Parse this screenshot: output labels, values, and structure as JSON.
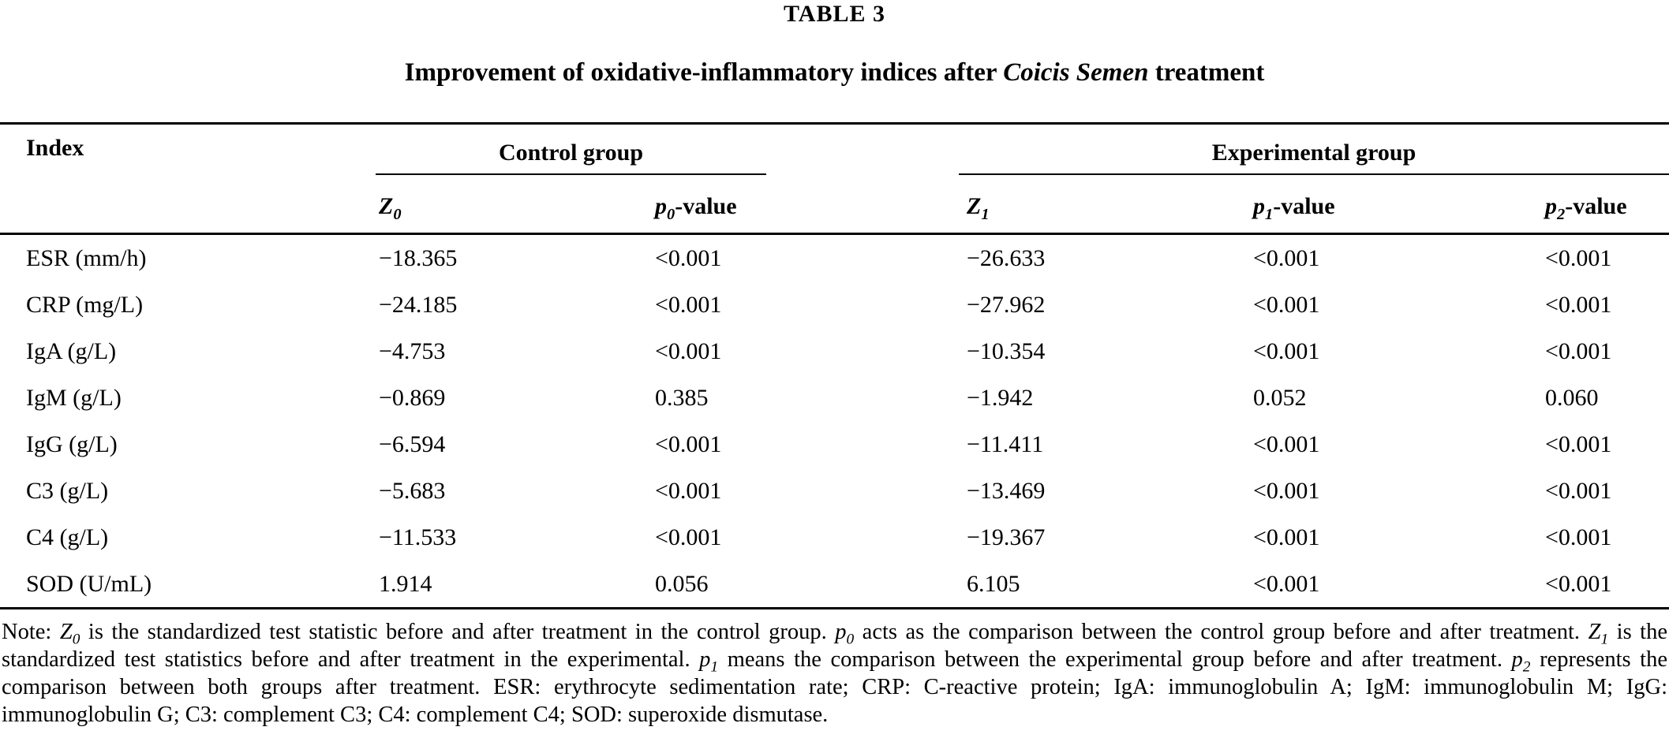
{
  "caption": {
    "label": "TABLE 3",
    "title_prefix": "Improvement of oxidative-inflammatory indices after ",
    "title_emphasis": "Coicis Semen",
    "title_suffix": " treatment"
  },
  "table": {
    "index_header": "Index",
    "groups": [
      {
        "label": "Control group"
      },
      {
        "label": "Experimental group"
      }
    ],
    "columns": [
      {
        "base": "Z",
        "sub": "0",
        "suffix": ""
      },
      {
        "base": "p",
        "sub": "0",
        "suffix": "-value"
      },
      {
        "base": "Z",
        "sub": "1",
        "suffix": ""
      },
      {
        "base": "p",
        "sub": "1",
        "suffix": "-value"
      },
      {
        "base": "p",
        "sub": "2",
        "suffix": "-value"
      }
    ],
    "rows": [
      {
        "index": "ESR (mm/h)",
        "values": [
          "−18.365",
          "<0.001",
          "−26.633",
          "<0.001",
          "<0.001"
        ]
      },
      {
        "index": "CRP (mg/L)",
        "values": [
          "−24.185",
          "<0.001",
          "−27.962",
          "<0.001",
          "<0.001"
        ]
      },
      {
        "index": "IgA (g/L)",
        "values": [
          "−4.753",
          "<0.001",
          "−10.354",
          "<0.001",
          "<0.001"
        ]
      },
      {
        "index": "IgM (g/L)",
        "values": [
          "−0.869",
          "0.385",
          "−1.942",
          "0.052",
          "0.060"
        ]
      },
      {
        "index": "IgG (g/L)",
        "values": [
          "−6.594",
          "<0.001",
          "−11.411",
          "<0.001",
          "<0.001"
        ]
      },
      {
        "index": "C3 (g/L)",
        "values": [
          "−5.683",
          "<0.001",
          "−13.469",
          "<0.001",
          "<0.001"
        ]
      },
      {
        "index": "C4 (g/L)",
        "values": [
          "−11.533",
          "<0.001",
          "−19.367",
          "<0.001",
          "<0.001"
        ]
      },
      {
        "index": "SOD (U/mL)",
        "values": [
          "1.914",
          "0.056",
          "6.105",
          "<0.001",
          "<0.001"
        ]
      }
    ]
  },
  "note": {
    "segments": [
      {
        "text": "Note: "
      },
      {
        "var": "Z",
        "sub": "0"
      },
      {
        "text": " is the standardized test statistic before and after treatment in the control group. "
      },
      {
        "var": "p",
        "sub": "0"
      },
      {
        "text": " acts as the comparison between the control group before and after treatment. "
      },
      {
        "var": "Z",
        "sub": "1"
      },
      {
        "text": " is the standardized test statistics before and after treatment in the experimental. "
      },
      {
        "var": "p",
        "sub": "1"
      },
      {
        "text": " means the comparison between the experimental group before and after treatment. "
      },
      {
        "var": "p",
        "sub": "2"
      },
      {
        "text": " represents the comparison between both groups after treatment. ESR: erythrocyte sedimentation rate; CRP: C-reactive protein; IgA: immunoglobulin A; IgM: immunoglobulin M; IgG: immunoglobulin G; C3: complement C3; C4: complement C4; SOD: superoxide dismutase."
      }
    ]
  },
  "colors": {
    "text": "#000000",
    "background": "#ffffff",
    "rule": "#000000"
  }
}
